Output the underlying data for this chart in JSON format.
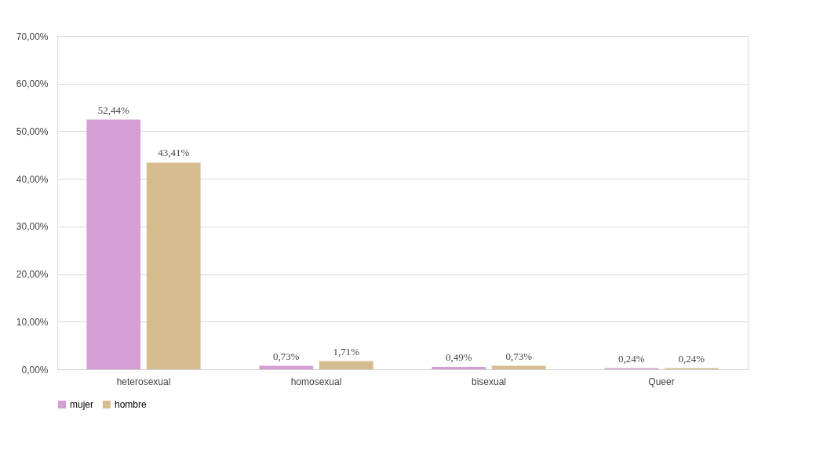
{
  "chart_data": {
    "type": "bar",
    "categories": [
      "heterosexual",
      "homosexual",
      "bisexual",
      "Queer"
    ],
    "series": [
      {
        "name": "mujer",
        "color": "#d59fd5",
        "values": [
          52.44,
          0.73,
          0.49,
          0.24
        ],
        "value_labels": [
          "52,44%",
          "0,73%",
          "0,49%",
          "0,24%"
        ]
      },
      {
        "name": "hombre",
        "color": "#d5bd90",
        "values": [
          43.41,
          1.71,
          0.73,
          0.24
        ],
        "value_labels": [
          "43,41%",
          "1,71%",
          "0,73%",
          "0,24%"
        ]
      }
    ],
    "ylim": [
      0,
      70
    ],
    "yticks": [
      {
        "value": 0,
        "label": "0,00%"
      },
      {
        "value": 10,
        "label": "10,00%"
      },
      {
        "value": 20,
        "label": "20,00%"
      },
      {
        "value": 30,
        "label": "30,00%"
      },
      {
        "value": 40,
        "label": "40,00%"
      },
      {
        "value": 50,
        "label": "50,00%"
      },
      {
        "value": 60,
        "label": "60,00%"
      },
      {
        "value": 70,
        "label": "70,00%"
      }
    ],
    "grid": "y",
    "legend": "bottom"
  }
}
